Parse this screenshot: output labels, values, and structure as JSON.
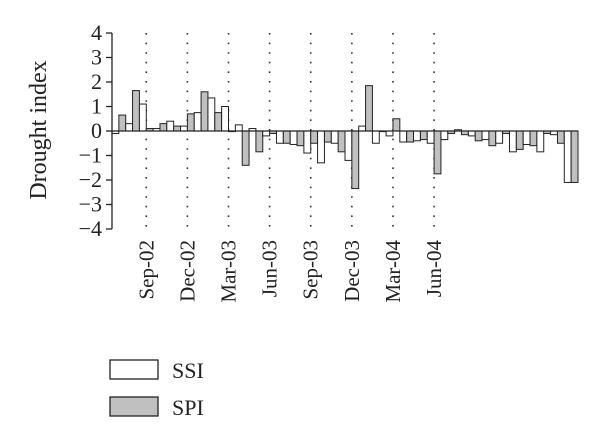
{
  "chart_data": {
    "type": "bar",
    "title": "",
    "xlabel": "",
    "ylabel": "Drought index",
    "ylim": [
      -4,
      4
    ],
    "yticks": [
      "4",
      "3",
      "2",
      "1",
      "0",
      "−1",
      "−2",
      "−3",
      "−4"
    ],
    "x_tick_labels": [
      "Sep-02",
      "Dec-02",
      "Mar-03",
      "Jun-03",
      "Sep-03",
      "Dec-03",
      "Mar-04",
      "Jun-04"
    ],
    "grid": "vertical dotted lines at x tick labels",
    "legend_placement": "bottom-left",
    "series": [
      {
        "name": "SSI",
        "color": "#ffffff",
        "values": [
          -0.1,
          0.3,
          1.1,
          0.1,
          0.4,
          0.2,
          0.75,
          1.35,
          1.0,
          0.25,
          0.1,
          -0.2,
          -0.5,
          -0.55,
          -0.9,
          -1.3,
          -0.5,
          -1.2,
          0.2,
          -0.5,
          -0.2,
          -0.45,
          -0.4,
          -0.5,
          -0.35,
          0.05,
          -0.2,
          -0.35,
          -0.5,
          -0.85,
          -0.55,
          -0.85,
          -0.15,
          -2.1
        ]
      },
      {
        "name": "SPI",
        "color": "#c0c0c0",
        "values": [
          0.65,
          1.65,
          0.1,
          0.3,
          0.2,
          0.7,
          1.6,
          0.75,
          0.0,
          -1.4,
          -0.85,
          -0.1,
          -0.5,
          -0.6,
          -0.5,
          -0.45,
          -0.85,
          -2.35,
          1.85,
          0.0,
          0.5,
          -0.45,
          -0.35,
          -1.75,
          -0.1,
          -0.15,
          -0.4,
          -0.6,
          -0.1,
          -0.75,
          -0.6,
          -0.1,
          -0.5,
          -2.1
        ]
      }
    ]
  }
}
